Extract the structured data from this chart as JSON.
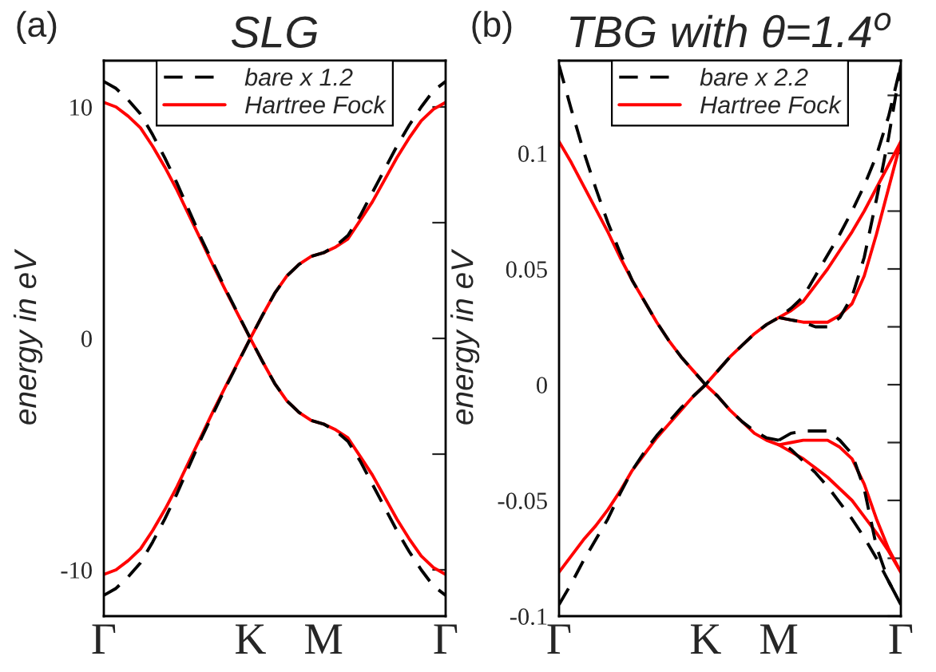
{
  "chart_data": [
    {
      "type": "line",
      "title": "SLG",
      "ylabel": "energy in eV",
      "annotations": [
        "(a)"
      ],
      "categories": [
        "Γ",
        null,
        null,
        null,
        null,
        null,
        null,
        null,
        null,
        null,
        null,
        null,
        "K",
        null,
        null,
        null,
        null,
        null,
        "M",
        null,
        null,
        null,
        null,
        null,
        null,
        null,
        null,
        null,
        "Γ"
      ],
      "ylim": [
        -12,
        12
      ],
      "yticks": [
        -10,
        {
          "value": -5,
          "label": null
        },
        0,
        {
          "value": 5,
          "label": null
        },
        10
      ],
      "legend": "top",
      "series": [
        {
          "name": "bare x 1.2",
          "color": "#000000",
          "line_style": "dashed",
          "values": [
            11.1,
            10.8,
            10.3,
            9.7,
            8.8,
            7.8,
            6.7,
            5.5,
            4.3,
            3.2,
            2.1,
            1.05,
            0,
            1.0,
            1.95,
            2.7,
            3.2,
            3.55,
            3.7,
            4.0,
            4.45,
            5.3,
            6.3,
            7.3,
            8.3,
            9.2,
            10.0,
            10.7,
            11.1
          ]
        },
        {
          "color": "#000000",
          "line_style": "dashed",
          "values": [
            -11.1,
            -10.8,
            -10.3,
            -9.7,
            -8.8,
            -7.8,
            -6.7,
            -5.5,
            -4.3,
            -3.2,
            -2.1,
            -1.05,
            0,
            -1.0,
            -1.95,
            -2.7,
            -3.2,
            -3.55,
            -3.7,
            -4.0,
            -4.45,
            -5.3,
            -6.3,
            -7.3,
            -8.3,
            -9.2,
            -10.0,
            -10.7,
            -11.1
          ]
        },
        {
          "name": "Hartree Fock",
          "color": "#ff0000",
          "line_style": "solid",
          "values": [
            10.2,
            10.0,
            9.6,
            9.1,
            8.3,
            7.4,
            6.4,
            5.3,
            4.2,
            3.1,
            2.05,
            1.02,
            0,
            1.0,
            1.95,
            2.7,
            3.2,
            3.55,
            3.7,
            3.95,
            4.3,
            5.1,
            5.9,
            6.85,
            7.8,
            8.65,
            9.4,
            9.9,
            10.2
          ]
        },
        {
          "color": "#ff0000",
          "line_style": "solid",
          "values": [
            -10.2,
            -10.0,
            -9.6,
            -9.1,
            -8.3,
            -7.4,
            -6.4,
            -5.3,
            -4.2,
            -3.1,
            -2.05,
            -1.02,
            0,
            -1.0,
            -1.95,
            -2.7,
            -3.2,
            -3.55,
            -3.7,
            -3.95,
            -4.3,
            -5.1,
            -5.9,
            -6.85,
            -7.8,
            -8.65,
            -9.4,
            -9.9,
            -10.2
          ]
        }
      ]
    },
    {
      "type": "line",
      "title": "TBG with θ=1.4$^{o}$",
      "ylabel": "energy in eV",
      "annotations": [
        "(b)"
      ],
      "categories": [
        "Γ",
        null,
        null,
        null,
        null,
        null,
        null,
        null,
        null,
        null,
        null,
        null,
        "K",
        null,
        null,
        null,
        null,
        null,
        "M",
        null,
        null,
        null,
        null,
        null,
        null,
        null,
        null,
        null,
        "Γ"
      ],
      "ylim": [
        -0.1,
        0.14
      ],
      "yticks": [
        -0.1,
        {
          "value": -0.075,
          "label": null
        },
        -0.05,
        {
          "value": -0.025,
          "label": null
        },
        0,
        {
          "value": 0.025,
          "label": null
        },
        0.05,
        {
          "value": 0.075,
          "label": null
        },
        0.1,
        {
          "value": 0.125,
          "label": null
        }
      ],
      "legend": "top",
      "series": [
        {
          "name": "bare x 2.2",
          "color": "#000000",
          "line_style": "dashed",
          "values": [
            0.138,
            0.119,
            0.101,
            0.085,
            0.07,
            0.057,
            0.045,
            0.036,
            0.027,
            0.019,
            0.012,
            0.006,
            0,
            0.006,
            0.012,
            0.017,
            0.022,
            0.026,
            0.029,
            0.033,
            0.038,
            0.047,
            0.056,
            0.065,
            0.075,
            0.086,
            0.099,
            0.116,
            0.138
          ]
        },
        {
          "color": "#000000",
          "line_style": "dashed",
          "values": [
            null,
            null,
            null,
            null,
            null,
            null,
            null,
            null,
            null,
            null,
            null,
            null,
            null,
            null,
            null,
            null,
            null,
            null,
            0.029,
            0.028,
            0.027,
            0.025,
            0.025,
            0.029,
            0.038,
            0.055,
            0.08,
            0.107,
            0.138
          ]
        },
        {
          "color": "#000000",
          "line_style": "dashed",
          "values": [
            -0.095,
            -0.086,
            -0.076,
            -0.067,
            -0.058,
            -0.047,
            -0.037,
            -0.029,
            -0.022,
            -0.016,
            -0.01,
            -0.005,
            0,
            -0.005,
            -0.011,
            -0.016,
            -0.02,
            -0.023,
            -0.024,
            -0.028,
            -0.033,
            -0.038,
            -0.044,
            -0.051,
            -0.058,
            -0.066,
            -0.075,
            -0.085,
            -0.095
          ]
        },
        {
          "color": "#000000",
          "line_style": "dashed",
          "values": [
            null,
            null,
            null,
            null,
            null,
            null,
            null,
            null,
            null,
            null,
            null,
            null,
            null,
            null,
            null,
            null,
            null,
            null,
            -0.024,
            -0.021,
            -0.02,
            -0.02,
            -0.02,
            -0.024,
            -0.03,
            -0.045,
            -0.07,
            -0.085,
            -0.095
          ]
        },
        {
          "name": "Hartree Fock",
          "color": "#ff0000",
          "line_style": "solid",
          "values": [
            0.105,
            0.096,
            0.086,
            0.076,
            0.066,
            0.055,
            0.045,
            0.036,
            0.027,
            0.019,
            0.012,
            0.006,
            0,
            0.006,
            0.012,
            0.017,
            0.022,
            0.026,
            0.029,
            0.032,
            0.036,
            0.043,
            0.05,
            0.058,
            0.066,
            0.075,
            0.085,
            0.095,
            0.105
          ]
        },
        {
          "color": "#ff0000",
          "line_style": "solid",
          "values": [
            null,
            null,
            null,
            null,
            null,
            null,
            null,
            null,
            null,
            null,
            null,
            null,
            null,
            null,
            null,
            null,
            null,
            null,
            0.029,
            0.028,
            0.027,
            0.027,
            0.027,
            0.03,
            0.035,
            0.047,
            0.065,
            0.085,
            0.105
          ]
        },
        {
          "color": "#ff0000",
          "line_style": "solid",
          "values": [
            -0.081,
            -0.074,
            -0.067,
            -0.061,
            -0.054,
            -0.046,
            -0.037,
            -0.03,
            -0.023,
            -0.017,
            -0.011,
            -0.005,
            0,
            -0.005,
            -0.011,
            -0.016,
            -0.021,
            -0.024,
            -0.026,
            -0.029,
            -0.032,
            -0.036,
            -0.04,
            -0.045,
            -0.05,
            -0.057,
            -0.064,
            -0.072,
            -0.081
          ]
        },
        {
          "color": "#ff0000",
          "line_style": "solid",
          "values": [
            null,
            null,
            null,
            null,
            null,
            null,
            null,
            null,
            null,
            null,
            null,
            null,
            null,
            null,
            null,
            null,
            null,
            null,
            -0.026,
            -0.025,
            -0.024,
            -0.024,
            -0.024,
            -0.027,
            -0.032,
            -0.043,
            -0.058,
            -0.071,
            -0.081
          ]
        }
      ]
    }
  ]
}
